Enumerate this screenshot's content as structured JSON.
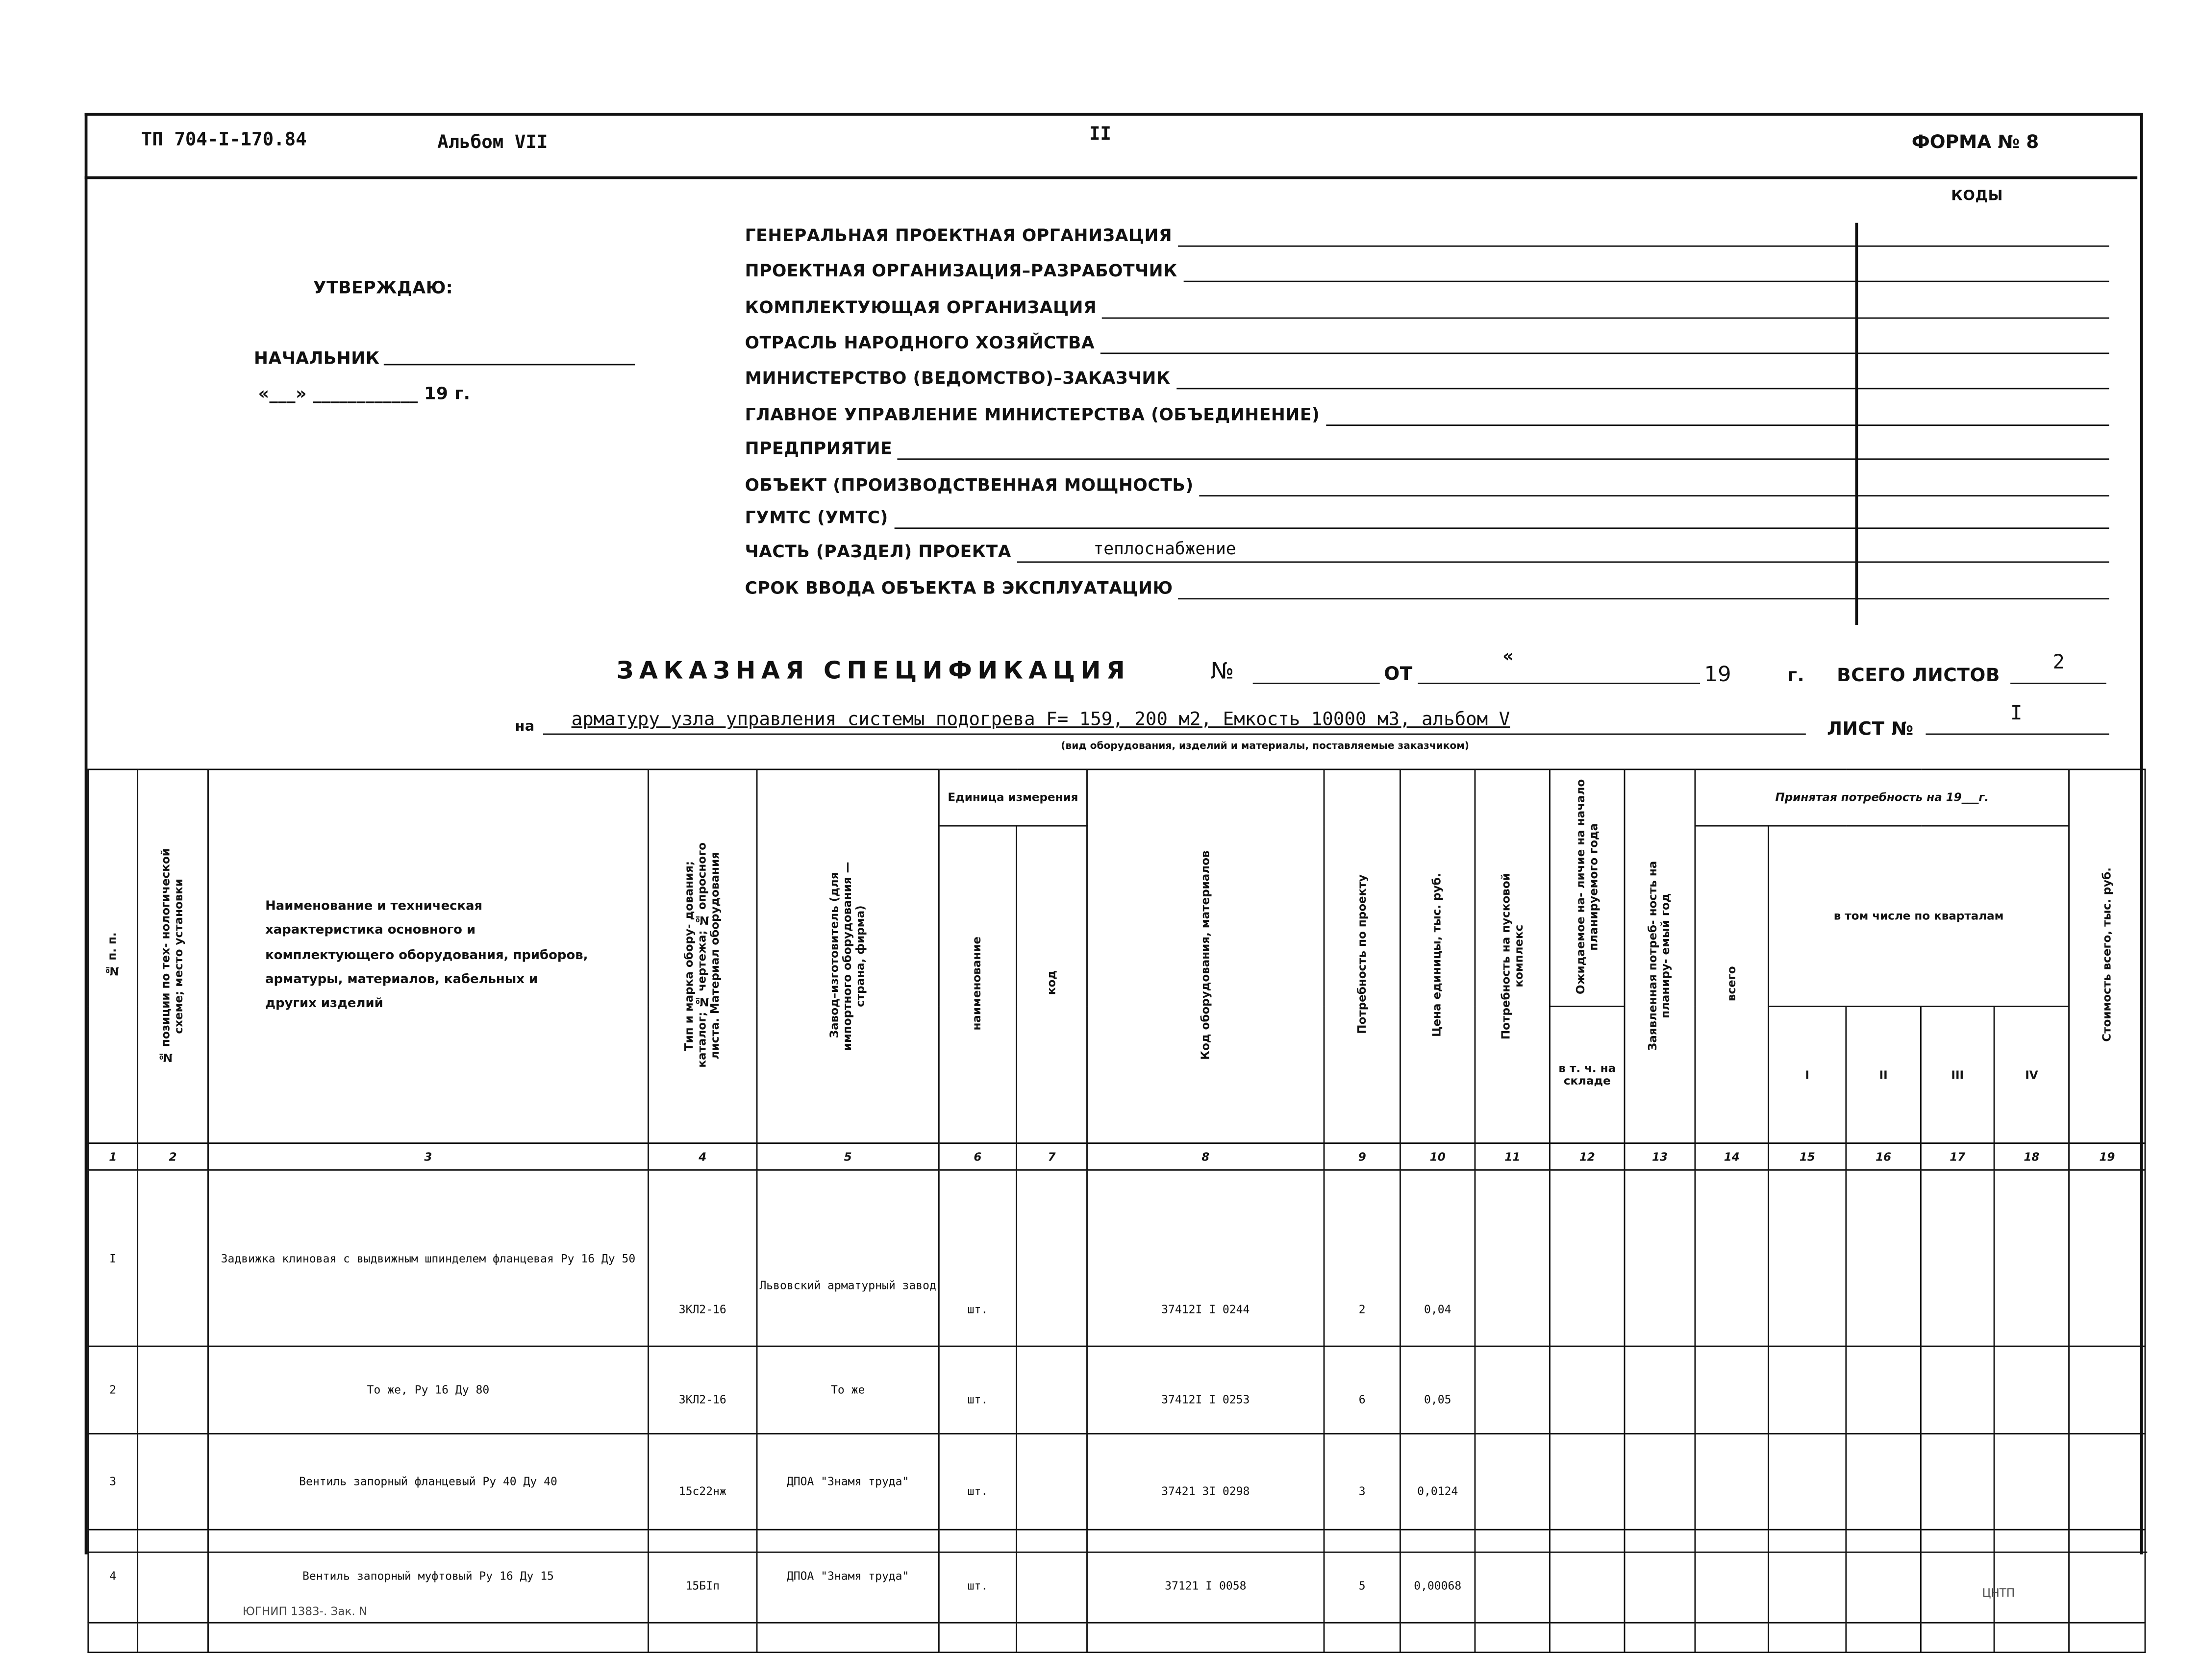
{
  "header": {
    "project_code": "ТП 704-I-170.84",
    "album": "Альбом VII",
    "page_number": "II",
    "form_label": "ФОРМА № 8"
  },
  "approval": {
    "approve": "УТВЕРЖДАЮ:",
    "chief": "НАЧАЛЬНИК",
    "date_line": "«___» ____________ 19   г."
  },
  "codes_label": "КОДЫ",
  "org_fields": [
    {
      "label": "ГЕНЕРАЛЬНАЯ ПРОЕКТНАЯ ОРГАНИЗАЦИЯ",
      "value": ""
    },
    {
      "label": "ПРОЕКТНАЯ ОРГАНИЗАЦИЯ–РАЗРАБОТЧИК",
      "value": ""
    },
    {
      "label": "КОМПЛЕКТУЮЩАЯ ОРГАНИЗАЦИЯ",
      "value": ""
    },
    {
      "label": "ОТРАСЛЬ НАРОДНОГО ХОЗЯЙСТВА",
      "value": ""
    },
    {
      "label": "МИНИСТЕРСТВО (ВЕДОМСТВО)–ЗАКАЗЧИК",
      "value": ""
    },
    {
      "label": "ГЛАВНОЕ УПРАВЛЕНИЕ МИНИСТЕРСТВА (ОБЪЕДИНЕНИЕ)",
      "value": ""
    },
    {
      "label": "ПРЕДПРИЯТИЕ",
      "value": ""
    },
    {
      "label": "ОБЪЕКТ (ПРОИЗВОДСТВЕННАЯ МОЩНОСТЬ)",
      "value": ""
    },
    {
      "label": "ГУМТС (УМТС)",
      "value": ""
    },
    {
      "label": "ЧАСТЬ (РАЗДЕЛ) ПРОЕКТА",
      "value": "теплоснабжение"
    },
    {
      "label": "СРОК ВВОДА ОБЪЕКТА В ЭКСПЛУАТАЦИЮ",
      "value": ""
    }
  ],
  "spec": {
    "title": "ЗАКАЗНАЯ СПЕЦИФИКАЦИЯ",
    "no_label": "№",
    "from_label": "ОТ",
    "quote_mark": "«",
    "year_label": "19",
    "year_suffix": "г.",
    "total_sheets_label": "ВСЕГО ЛИСТОВ",
    "total_sheets": "2",
    "on_label": "на",
    "subject": "арматуру узла управления системы подогрева F= 159, 200 м2, Емкость 10000 м3, альбом V",
    "subject_caption": "(вид оборудования, изделий и материалы, поставляемые заказчиком)",
    "sheet_label": "ЛИСТ №",
    "sheet_no": "I"
  },
  "table": {
    "headers": {
      "c1": "№ п. п.",
      "c2": "№ позиции по тех- нологической схеме; место установки",
      "c3": "Наименование и техническая характеристика основного и комплектующего оборудования, приборов, арматуры, материалов, кабельных и других изделий",
      "c4": "Тип и марка обору- дования; каталог; № чертежа; № опросного листа. Материал оборудования",
      "c5": "Завод–изготовитель (для импортного оборудования —страна, фирма)",
      "c67": "Единица измерения",
      "c6": "наименование",
      "c7": "код",
      "c8": "Код оборудования, материалов",
      "c9": "Потребность по проекту",
      "c10": "Цена единицы, тыс. руб.",
      "c11": "Потребность на пусковой комплекс",
      "c12": "Ожидаемое на- личие на начало планируемого года",
      "c12b": "в т. ч. на складе",
      "c13": "Заявленная потреб- ность на планиру- емый год",
      "c1418": "Принятая потребность на 19___г.",
      "c14": "всего",
      "c1518": "в том числе по кварталам",
      "c15": "I",
      "c16": "II",
      "c17": "III",
      "c18": "IV",
      "c19": "Стоимость всего, тыс. руб."
    },
    "column_numbers": [
      "1",
      "2",
      "3",
      "4",
      "5",
      "6",
      "7",
      "8",
      "9",
      "10",
      "11",
      "12",
      "13",
      "14",
      "15",
      "16",
      "17",
      "18",
      "19"
    ],
    "rows": [
      {
        "n": "I",
        "pos": "",
        "name": "Задвижка клиновая с выдвижным шпинделем фланцевая Ру 16 Ду 50",
        "type": "ЗКЛ2-16",
        "maker": "Львовский арматурный завод",
        "unit": "шт.",
        "unit_code": "",
        "code": "37412I I 0244",
        "qty": "2",
        "price": "0,04"
      },
      {
        "n": "2",
        "pos": "",
        "name": "То же, Ру 16  Ду 80",
        "type": "ЗКЛ2-16",
        "maker": "То же",
        "unit": "шт.",
        "unit_code": "",
        "code": "37412I I 0253",
        "qty": "6",
        "price": "0,05"
      },
      {
        "n": "3",
        "pos": "",
        "name": "Вентиль запорный фланцевый Ру 40  Ду 40",
        "type": "15с22нж",
        "maker": "ДПОА \"Знамя труда\"",
        "unit": "шт.",
        "unit_code": "",
        "code": "37421 3I 0298",
        "qty": "3",
        "price": "0,0124"
      },
      {
        "n": "4",
        "pos": "",
        "name": "Вентиль запорный муфтовый Ру 16 Ду 15",
        "type": "15БIп",
        "maker": "ДПОА \"Знамя труда\"",
        "unit": "шт.",
        "unit_code": "",
        "code": "37121 I 0058",
        "qty": "5",
        "price": "0,00068"
      }
    ]
  },
  "footer": {
    "left": "ЮГНИП 1383-. Зак. N",
    "right": "ЦНТП"
  }
}
